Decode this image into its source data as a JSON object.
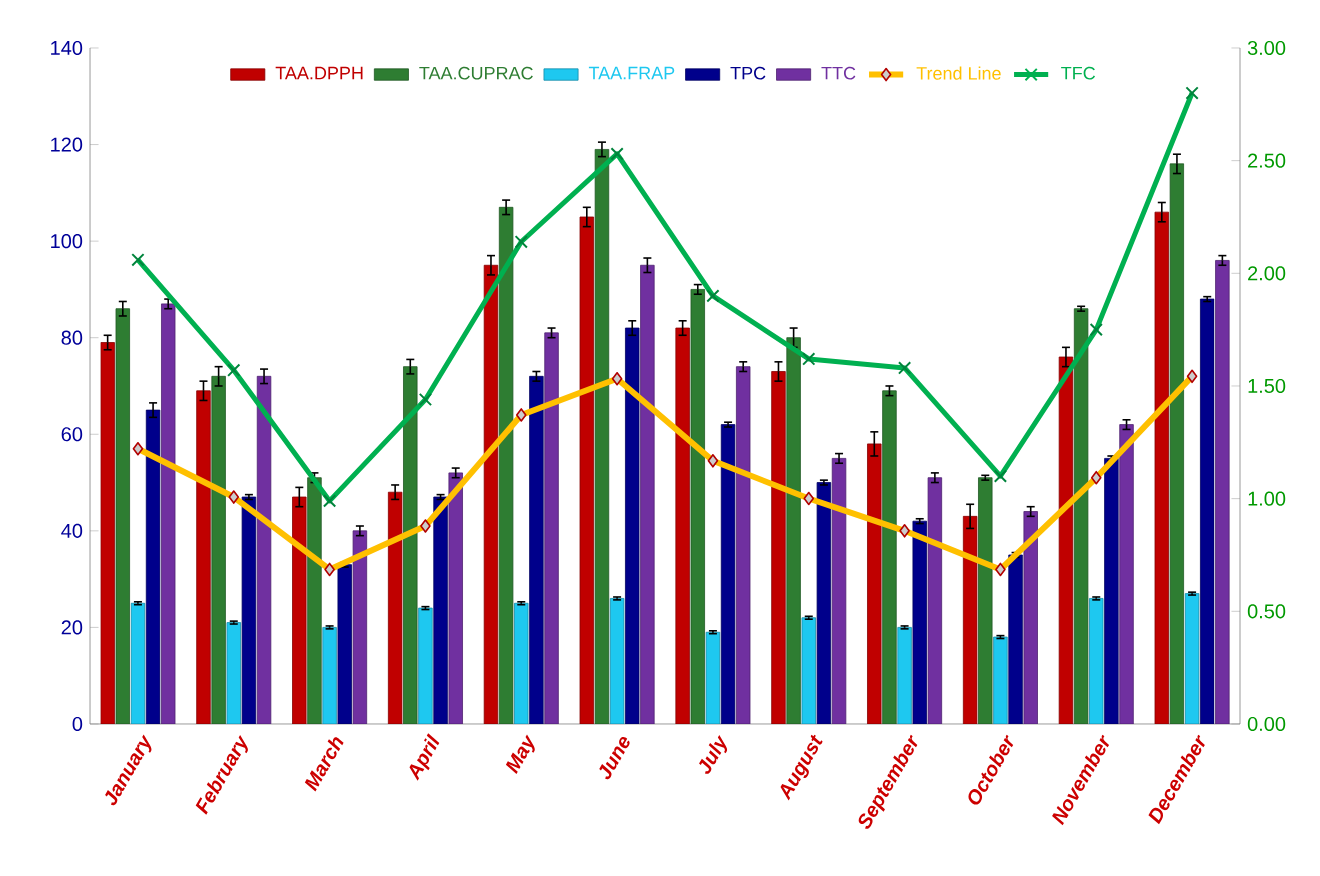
{
  "chart_data": {
    "type": "bar",
    "categories": [
      "January",
      "February",
      "March",
      "April",
      "May",
      "June",
      "July",
      "August",
      "September",
      "October",
      "November",
      "December"
    ],
    "series": [
      {
        "name": "TAA.DPPH",
        "color": "#c00000",
        "values": [
          79,
          69,
          47,
          48,
          95,
          105,
          82,
          73,
          58,
          43,
          76,
          106
        ],
        "errors": [
          1.5,
          2,
          2,
          1.5,
          2,
          2,
          1.5,
          2,
          2.5,
          2.5,
          2,
          2
        ]
      },
      {
        "name": "TAA.CUPRAC",
        "color": "#2e7d32",
        "values": [
          86,
          72,
          51,
          74,
          107,
          119,
          90,
          80,
          69,
          51,
          86,
          116
        ],
        "errors": [
          1.5,
          2,
          1,
          1.5,
          1.5,
          1.5,
          1,
          2,
          1,
          0.5,
          0.5,
          2
        ]
      },
      {
        "name": "TAA.FRAP",
        "color": "#1ec8f0",
        "values": [
          25,
          21,
          20,
          24,
          25,
          26,
          19,
          22,
          20,
          18,
          26,
          27
        ],
        "errors": [
          0.3,
          0.3,
          0.3,
          0.3,
          0.3,
          0.3,
          0.3,
          0.3,
          0.3,
          0.3,
          0.3,
          0.3
        ]
      },
      {
        "name": "TPC",
        "color": "#00008b",
        "values": [
          65,
          47,
          33,
          47,
          72,
          82,
          62,
          50,
          42,
          35,
          55,
          88
        ],
        "errors": [
          1.5,
          0.5,
          0.5,
          0.5,
          1,
          1.5,
          0.5,
          0.5,
          0.5,
          0.5,
          0.5,
          0.5
        ]
      },
      {
        "name": "TTC",
        "color": "#7030a0",
        "values": [
          87,
          72,
          40,
          52,
          81,
          95,
          74,
          55,
          51,
          44,
          62,
          96
        ],
        "errors": [
          1,
          1.5,
          1,
          1,
          1,
          1.5,
          1,
          1,
          1,
          1,
          1,
          1
        ]
      },
      {
        "name": "Trend Line",
        "type": "line",
        "color": "#ffc000",
        "marker": "diamond",
        "values": [
          57,
          47,
          32,
          41,
          64,
          71.5,
          54.5,
          46.7,
          40,
          32,
          51,
          72
        ]
      },
      {
        "name": "TFC",
        "type": "line",
        "axis": "y2",
        "color": "#00b050",
        "marker": "cross",
        "values": [
          2.06,
          1.57,
          0.99,
          1.44,
          2.14,
          2.53,
          1.9,
          1.62,
          1.58,
          1.1,
          1.75,
          2.8
        ]
      }
    ],
    "ylim": [
      0,
      140
    ],
    "yticks": [
      0,
      20,
      40,
      60,
      80,
      100,
      120,
      140
    ],
    "y2lim": [
      0,
      3
    ],
    "y2ticks": [
      {
        "value": 0,
        "label": "0.00"
      },
      {
        "value": 0.5,
        "label": "0.50"
      },
      {
        "value": 1,
        "label": "1.00"
      },
      {
        "value": 1.5,
        "label": "1.50"
      },
      {
        "value": 2,
        "label": "2.00"
      },
      {
        "value": 2.5,
        "label": "2.50"
      },
      {
        "value": 3,
        "label": "3.00"
      }
    ],
    "legend": "top",
    "grid": false
  }
}
